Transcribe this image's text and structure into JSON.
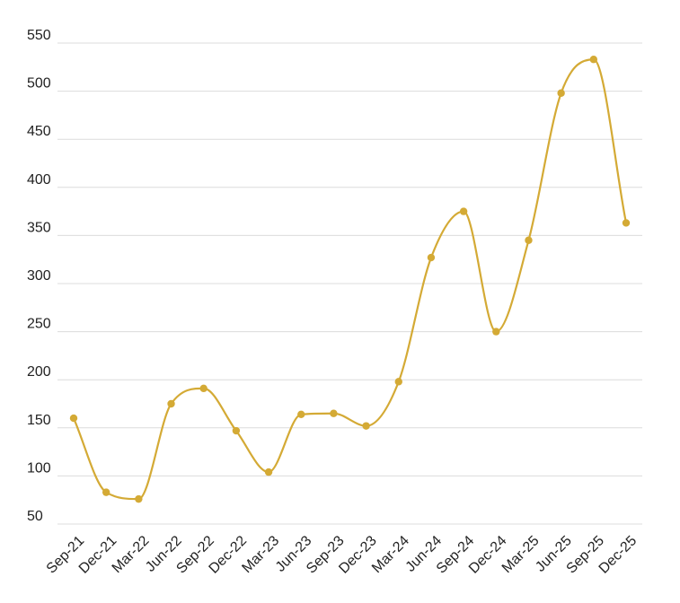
{
  "chart_data": {
    "type": "line",
    "smooth": true,
    "title": "",
    "xlabel": "",
    "ylabel": "",
    "categories": [
      "Sep-21",
      "Dec-21",
      "Mar-22",
      "Jun-22",
      "Sep-22",
      "Dec-22",
      "Mar-23",
      "Jun-23",
      "Sep-23",
      "Dec-23",
      "Mar-24",
      "Jun-24",
      "Sep-24",
      "Dec-24",
      "Mar-25",
      "Jun-25",
      "Sep-25",
      "Dec-25"
    ],
    "series": [
      {
        "values": [
          160,
          83,
          76,
          175,
          191,
          147,
          104,
          164,
          165,
          152,
          198,
          327,
          375,
          250,
          345,
          498,
          533,
          363
        ],
        "color": "#d4aa35"
      }
    ],
    "yticks": [
      50,
      100,
      150,
      200,
      250,
      300,
      350,
      400,
      450,
      500,
      550
    ],
    "ylim": [
      50,
      550
    ],
    "grid": true,
    "legend": "none"
  }
}
